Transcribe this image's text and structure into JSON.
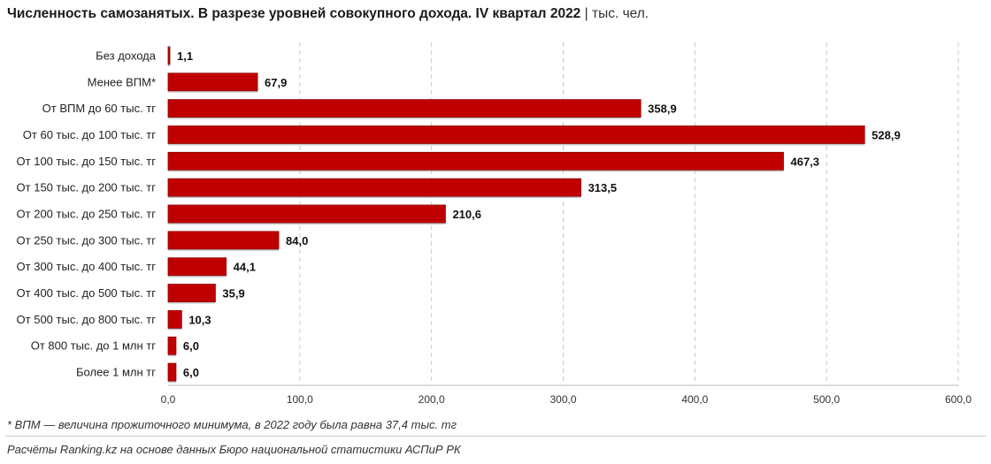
{
  "header": {
    "title": "Численность самозанятых. В разрезе уровней совокупного дохода. IV квартал 2022",
    "separator": "|",
    "unit": "тыс. чел."
  },
  "footnote": "* ВПМ — величина прожиточного минимума, в 2022 году была равна 37,4 тыс. тг",
  "source": "Расчёты Ranking.kz на основе данных Бюро национальной статистики АСПиР РК",
  "colors": {
    "bar": "#c00000",
    "grid": "#c8c8c8"
  },
  "chart_data": {
    "type": "bar",
    "orientation": "horizontal",
    "categories": [
      "Без дохода",
      "Менее ВПМ*",
      "От ВПМ до 60 тыс. тг",
      "От 60 тыс. до 100 тыс. тг",
      "От 100 тыс. до 150 тыс. тг",
      "От 150 тыс. до 200 тыс. тг",
      "От 200 тыс. до 250 тыс. тг",
      "От 250 тыс. до 300 тыс. тг",
      "От 300 тыс. до 400 тыс. тг",
      "От 400 тыс. до 500 тыс. тг",
      "От 500 тыс. до 800 тыс. тг",
      "От 800 тыс. до 1 млн тг",
      "Более 1 млн тг"
    ],
    "values": [
      1.1,
      67.9,
      358.9,
      528.9,
      467.3,
      313.5,
      210.6,
      84.0,
      44.1,
      35.9,
      10.3,
      6.0,
      6.0
    ],
    "value_labels": [
      "1,1",
      "67,9",
      "358,9",
      "528,9",
      "467,3",
      "313,5",
      "210,6",
      "84,0",
      "44,1",
      "35,9",
      "10,3",
      "6,0",
      "6,0"
    ],
    "xlim": [
      0,
      600
    ],
    "xticks": [
      0,
      100,
      200,
      300,
      400,
      500,
      600
    ],
    "xtick_labels": [
      "0,0",
      "100,0",
      "200,0",
      "300,0",
      "400,0",
      "500,0",
      "600,0"
    ],
    "grid": true,
    "legend": "none"
  }
}
